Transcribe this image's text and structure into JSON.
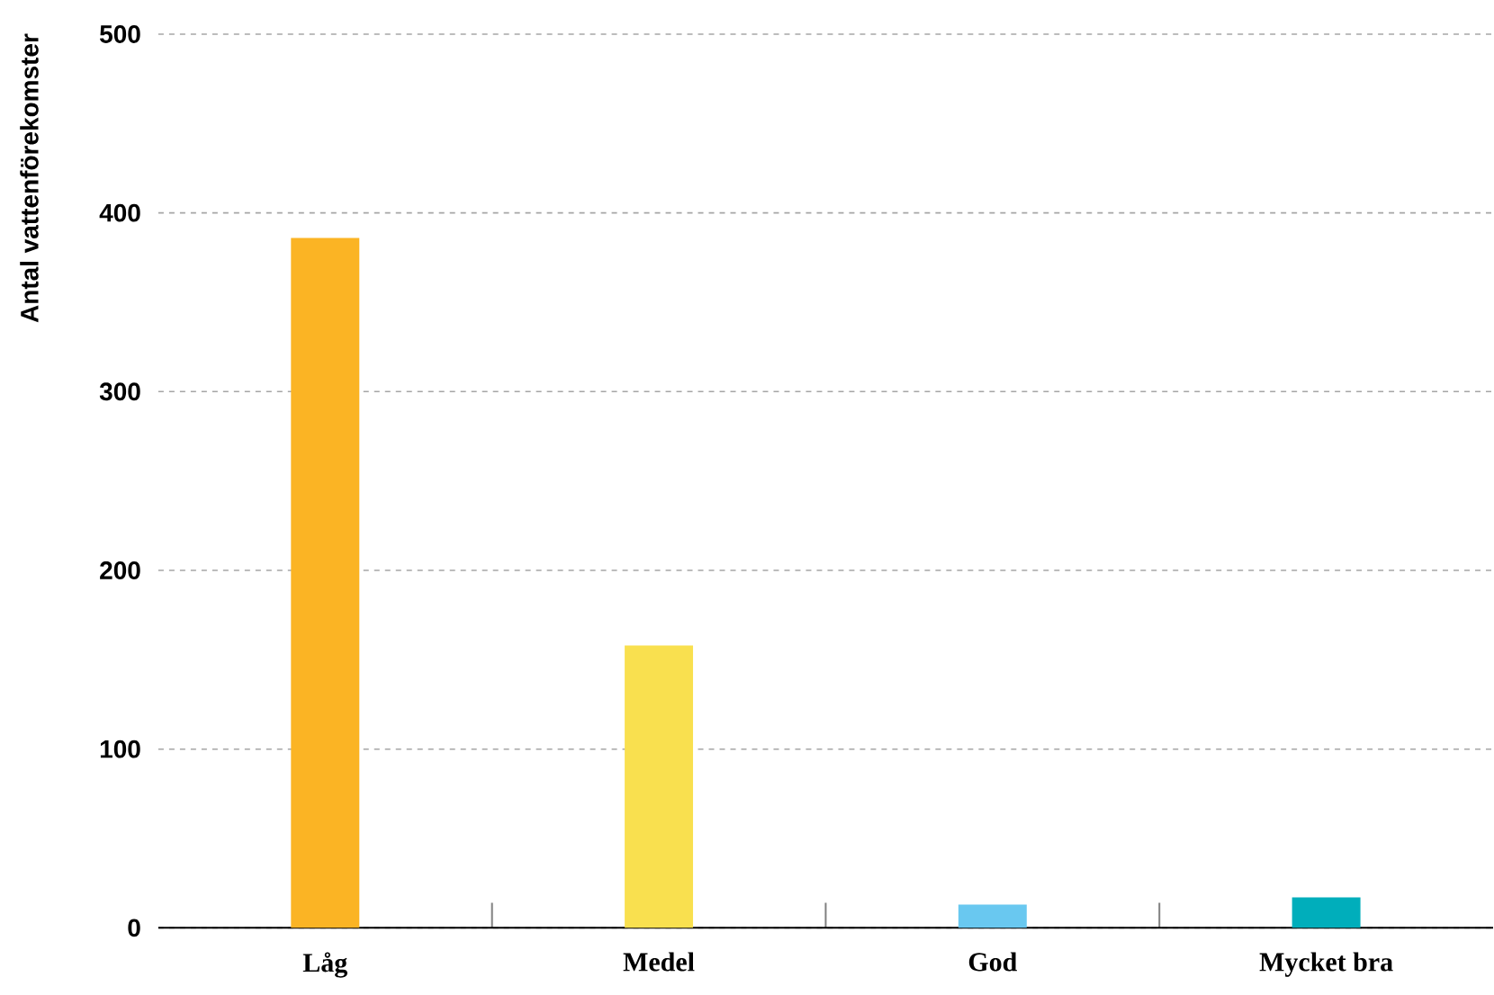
{
  "chart_data": {
    "type": "bar",
    "ylabel": "Antal vattenförekomster",
    "categories": [
      "Låg",
      "Medel",
      "God",
      "Mycket bra"
    ],
    "values": [
      386,
      158,
      13,
      17
    ],
    "colors": [
      "#fbb424",
      "#f9e04f",
      "#69c8f0",
      "#00aebb"
    ],
    "ylim": [
      0,
      500
    ],
    "yticks": [
      0,
      100,
      200,
      300,
      400,
      500
    ],
    "grid": "y"
  }
}
